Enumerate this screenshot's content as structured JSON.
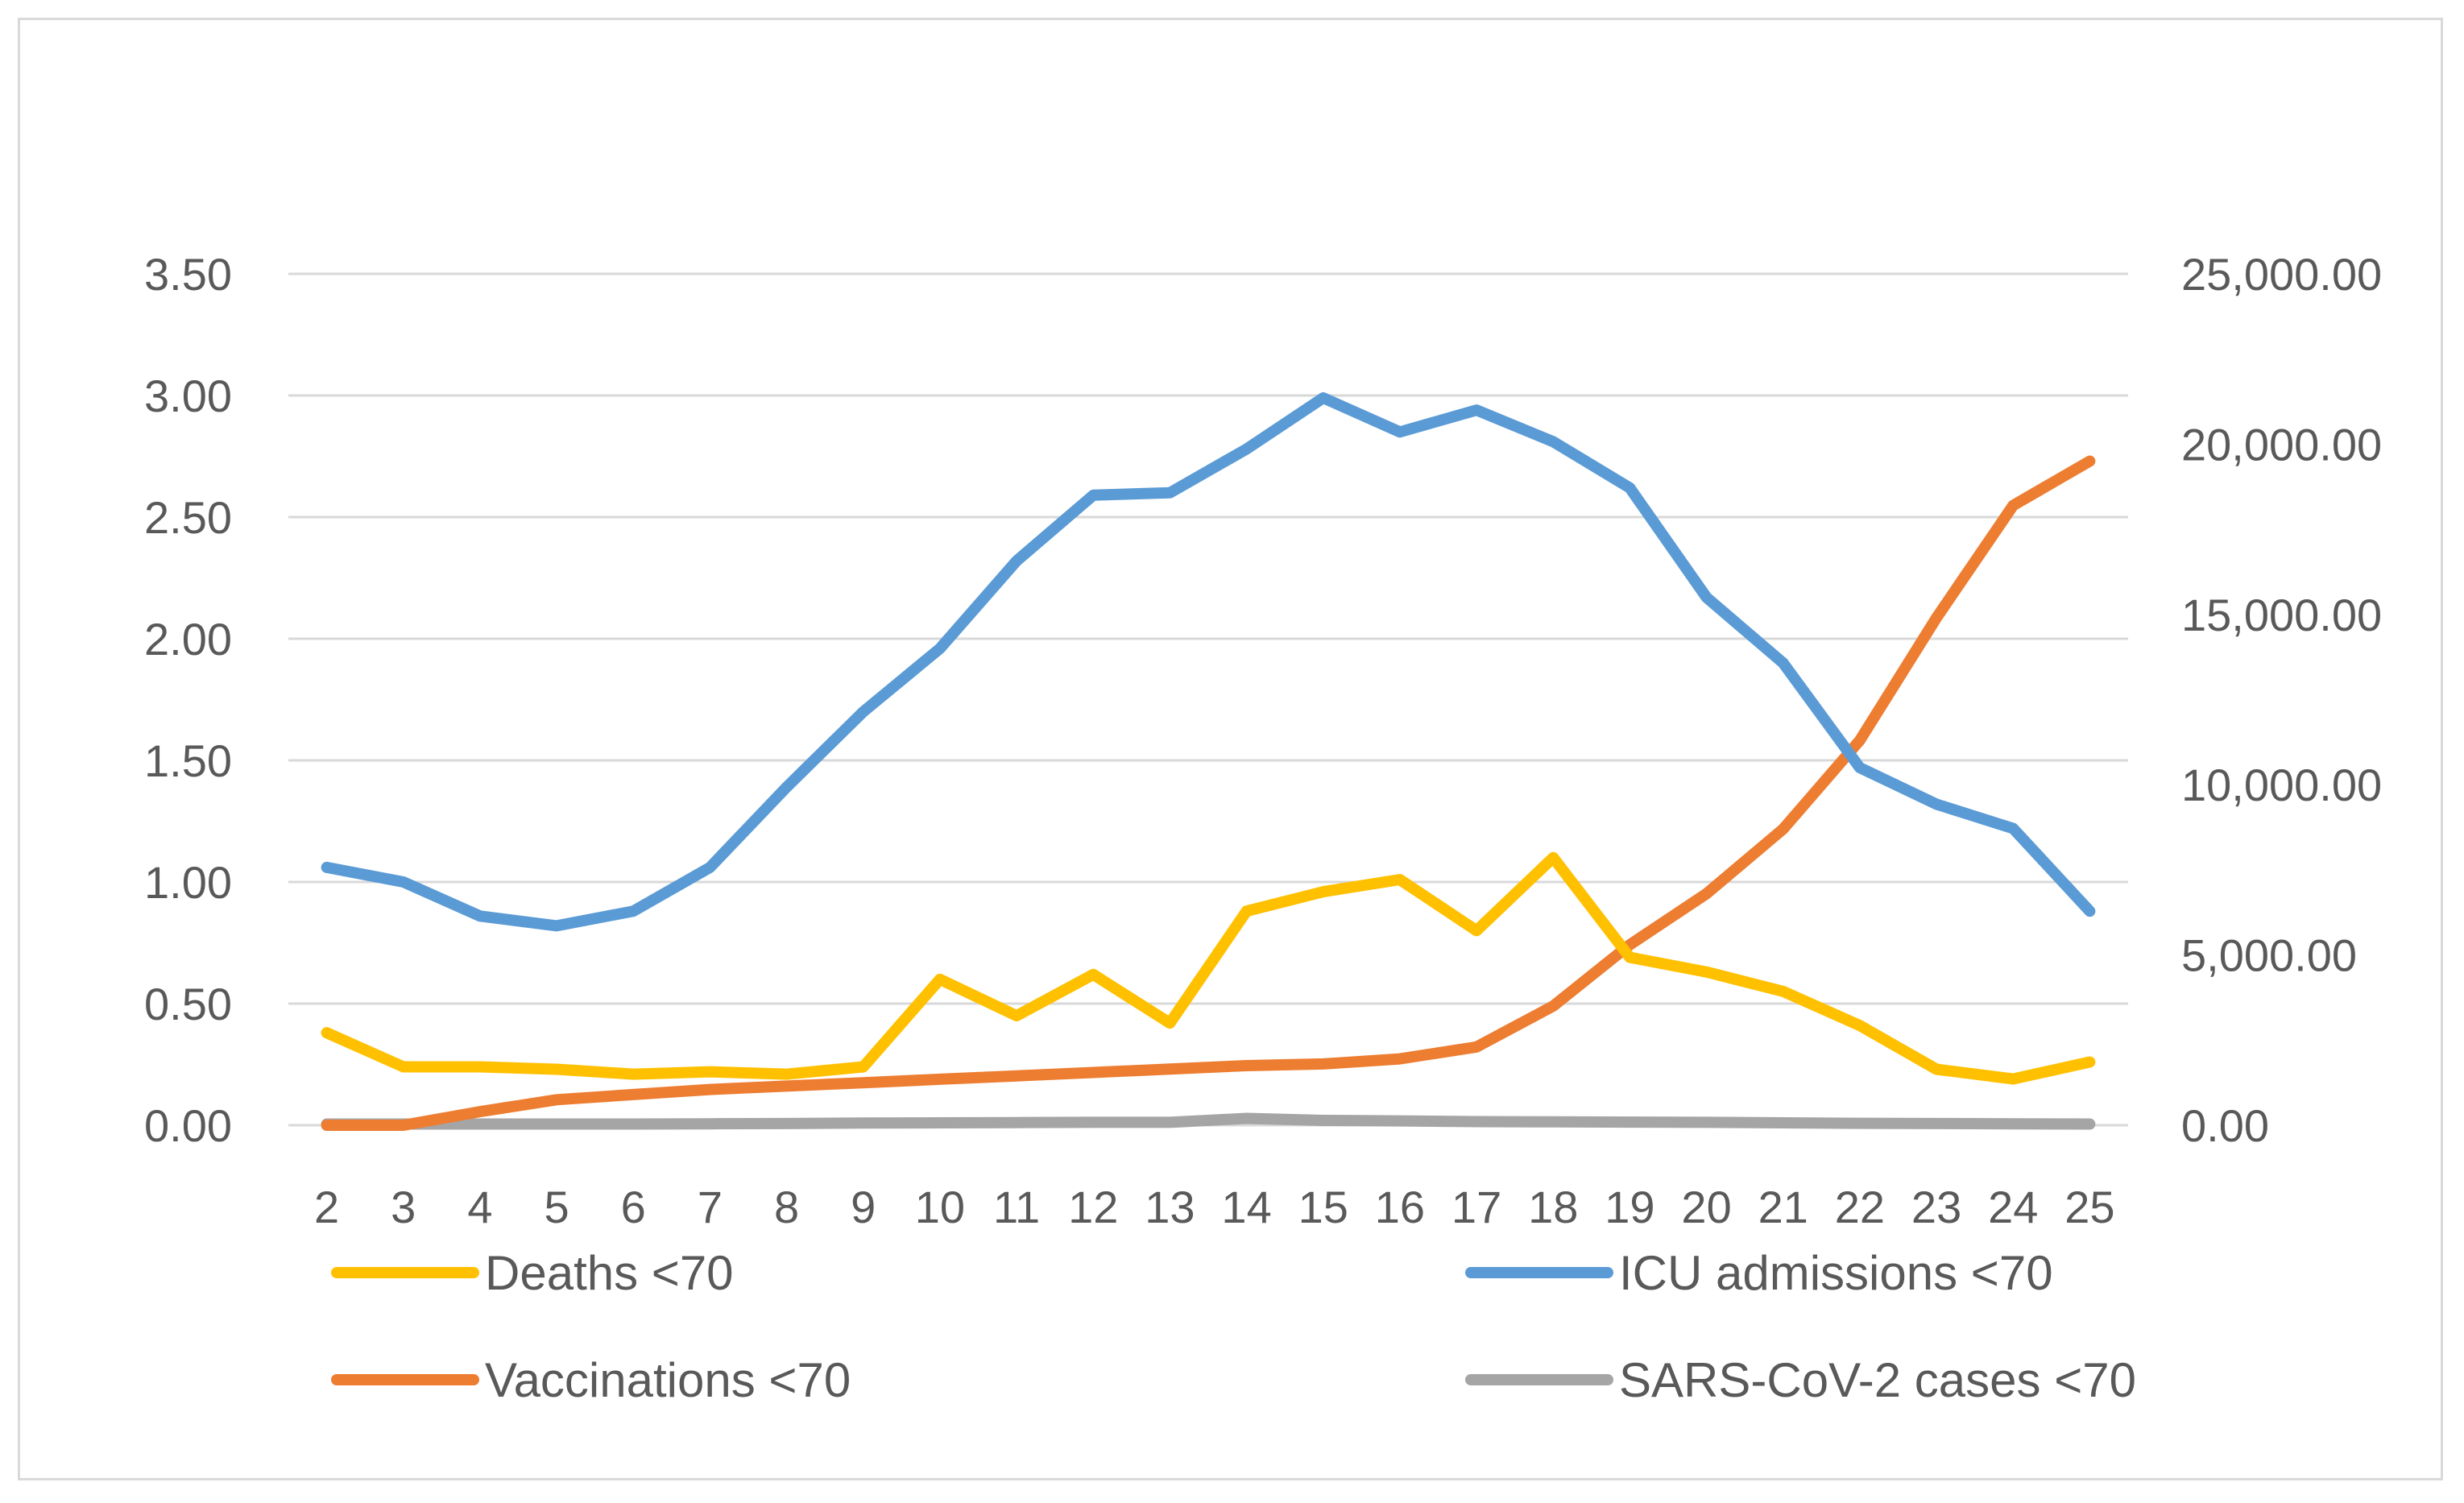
{
  "chart_data": {
    "type": "line",
    "title": "",
    "xlabel": "",
    "ylabel": "",
    "y2label": "",
    "grid": true,
    "legend_position": "bottom",
    "categories": [
      "2",
      "3",
      "4",
      "5",
      "6",
      "7",
      "8",
      "9",
      "10",
      "11",
      "12",
      "13",
      "14",
      "15",
      "16",
      "17",
      "18",
      "19",
      "20",
      "21",
      "22",
      "23",
      "24",
      "25"
    ],
    "ylim": [
      0,
      3.5
    ],
    "y2lim": [
      0,
      25000
    ],
    "yticks": [
      "0.00",
      "0.50",
      "1.00",
      "1.50",
      "2.00",
      "2.50",
      "3.00",
      "3.50"
    ],
    "y2ticks": [
      "0.00",
      "5,000.00",
      "10,000.00",
      "15,000.00",
      "20,000.00",
      "25,000.00"
    ],
    "series": [
      {
        "name": "Deaths <70",
        "axis": "left",
        "color": "#FFC000",
        "values": [
          0.38,
          0.24,
          0.24,
          0.23,
          0.21,
          0.22,
          0.21,
          0.24,
          0.6,
          0.45,
          0.62,
          0.42,
          0.88,
          0.96,
          1.01,
          0.8,
          1.1,
          0.69,
          0.63,
          0.55,
          0.41,
          0.23,
          0.19,
          0.26
        ]
      },
      {
        "name": "ICU admissions <70",
        "axis": "left",
        "color": "#5B9BD5",
        "values": [
          1.06,
          1.0,
          0.86,
          0.82,
          0.88,
          1.06,
          1.39,
          1.7,
          1.96,
          2.32,
          2.59,
          2.6,
          2.78,
          2.99,
          2.85,
          2.94,
          2.81,
          2.62,
          2.17,
          1.9,
          1.47,
          1.32,
          1.22,
          0.88
        ]
      },
      {
        "name": "Vaccinations <70",
        "axis": "right",
        "color": "#ED7D31",
        "values": [
          0,
          0,
          400,
          750,
          900,
          1050,
          1150,
          1250,
          1350,
          1450,
          1550,
          1650,
          1750,
          1800,
          1950,
          2300,
          3500,
          5300,
          6800,
          8700,
          11300,
          14900,
          18200,
          19500
        ]
      },
      {
        "name": "SARS-CoV-2 cases <70",
        "axis": "left",
        "color": "#A5A5A5",
        "values": [
          0.005,
          0.005,
          0.005,
          0.005,
          0.005,
          0.006,
          0.007,
          0.009,
          0.01,
          0.011,
          0.012,
          0.012,
          0.028,
          0.02,
          0.018,
          0.015,
          0.014,
          0.013,
          0.012,
          0.01,
          0.008,
          0.007,
          0.006,
          0.005
        ]
      }
    ]
  }
}
